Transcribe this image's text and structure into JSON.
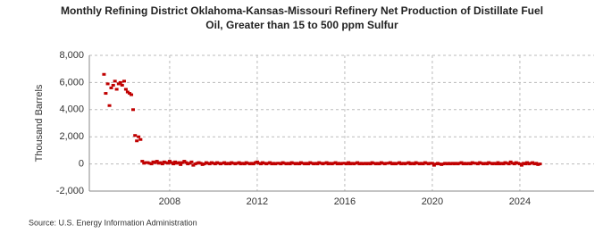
{
  "chart_data": {
    "type": "scatter",
    "title": [
      "Monthly Refining District Oklahoma-Kansas-Missouri Refinery Net Production of Distillate Fuel",
      "Oil, Greater than 15 to 500 ppm Sulfur"
    ],
    "y_label": "Thousand Barrels",
    "source": "Source: U.S. Energy Information Administration",
    "color": "#c00000",
    "grid": true,
    "xlim": [
      2004.33,
      2027.39
    ],
    "xticks": [
      2008,
      2012,
      2016,
      2020,
      2024
    ],
    "ylim": [
      -2000,
      8000
    ],
    "yticks": [
      {
        "value": -2000,
        "label": "-2,000"
      },
      0,
      {
        "value": 2000,
        "label": "2,000"
      },
      {
        "value": 4000,
        "label": "4,000"
      },
      {
        "value": 6000,
        "label": "6,000"
      },
      {
        "value": 8000,
        "label": "8,000"
      }
    ],
    "x": [
      2005,
      2005.08,
      2005.17,
      2005.25,
      2005.33,
      2005.42,
      2005.5,
      2005.58,
      2005.67,
      2005.75,
      2005.83,
      2005.92,
      2006,
      2006.08,
      2006.17,
      2006.25,
      2006.33,
      2006.42,
      2006.5,
      2006.58,
      2006.67,
      2006.75,
      2006.83,
      2006.92,
      2007,
      2007.08,
      2007.17,
      2007.25,
      2007.33,
      2007.42,
      2007.5,
      2007.58,
      2007.67,
      2007.75,
      2007.83,
      2007.92,
      2008,
      2008.08,
      2008.17,
      2008.25,
      2008.33,
      2008.42,
      2008.5,
      2008.58,
      2008.67,
      2008.75,
      2008.83,
      2008.92,
      2009,
      2009.08,
      2009.17,
      2009.25,
      2009.33,
      2009.42,
      2009.5,
      2009.58,
      2009.67,
      2009.75,
      2009.83,
      2009.92,
      2010,
      2010.08,
      2010.17,
      2010.25,
      2010.33,
      2010.42,
      2010.5,
      2010.58,
      2010.67,
      2010.75,
      2010.83,
      2010.92,
      2011,
      2011.08,
      2011.17,
      2011.25,
      2011.33,
      2011.42,
      2011.5,
      2011.58,
      2011.67,
      2011.75,
      2011.83,
      2011.92,
      2012,
      2012.08,
      2012.17,
      2012.25,
      2012.33,
      2012.42,
      2012.5,
      2012.58,
      2012.67,
      2012.75,
      2012.83,
      2012.92,
      2013,
      2013.08,
      2013.17,
      2013.25,
      2013.33,
      2013.42,
      2013.5,
      2013.58,
      2013.67,
      2013.75,
      2013.83,
      2013.92,
      2014,
      2014.08,
      2014.17,
      2014.25,
      2014.33,
      2014.42,
      2014.5,
      2014.58,
      2014.67,
      2014.75,
      2014.83,
      2014.92,
      2015,
      2015.08,
      2015.17,
      2015.25,
      2015.33,
      2015.42,
      2015.5,
      2015.58,
      2015.67,
      2015.75,
      2015.83,
      2015.92,
      2016,
      2016.08,
      2016.17,
      2016.25,
      2016.33,
      2016.42,
      2016.5,
      2016.58,
      2016.67,
      2016.75,
      2016.83,
      2016.92,
      2017,
      2017.08,
      2017.17,
      2017.25,
      2017.33,
      2017.42,
      2017.5,
      2017.58,
      2017.67,
      2017.75,
      2017.83,
      2017.92,
      2018,
      2018.08,
      2018.17,
      2018.25,
      2018.33,
      2018.42,
      2018.5,
      2018.58,
      2018.67,
      2018.75,
      2018.83,
      2018.92,
      2019,
      2019.08,
      2019.17,
      2019.25,
      2019.33,
      2019.42,
      2019.5,
      2019.58,
      2019.67,
      2019.75,
      2019.83,
      2019.92,
      2020,
      2020.08,
      2020.17,
      2020.25,
      2020.33,
      2020.42,
      2020.5,
      2020.58,
      2020.67,
      2020.75,
      2020.83,
      2020.92,
      2021,
      2021.08,
      2021.17,
      2021.25,
      2021.33,
      2021.42,
      2021.5,
      2021.58,
      2021.67,
      2021.75,
      2021.83,
      2021.92,
      2022,
      2022.08,
      2022.17,
      2022.25,
      2022.33,
      2022.42,
      2022.5,
      2022.58,
      2022.67,
      2022.75,
      2022.83,
      2022.92,
      2023,
      2023.08,
      2023.17,
      2023.25,
      2023.33,
      2023.42,
      2023.5,
      2023.58,
      2023.67,
      2023.75,
      2023.83,
      2023.92,
      2024,
      2024.08,
      2024.17,
      2024.25,
      2024.33,
      2024.42,
      2024.5,
      2024.58,
      2024.67,
      2024.75,
      2024.83,
      2024.92
    ],
    "values": [
      6600,
      5200,
      5900,
      4300,
      5600,
      5800,
      6100,
      5500,
      5900,
      6000,
      5800,
      6100,
      5500,
      5300,
      5200,
      5100,
      4000,
      2100,
      1700,
      2000,
      1800,
      200,
      50,
      100,
      100,
      50,
      0,
      150,
      100,
      200,
      50,
      100,
      0,
      150,
      100,
      50,
      200,
      100,
      0,
      150,
      50,
      100,
      -50,
      100,
      200,
      100,
      0,
      50,
      150,
      -100,
      0,
      50,
      100,
      50,
      -50,
      0,
      100,
      50,
      0,
      100,
      50,
      0,
      100,
      50,
      0,
      50,
      100,
      0,
      50,
      0,
      100,
      50,
      0,
      50,
      100,
      0,
      50,
      0,
      100,
      50,
      0,
      50,
      0,
      100,
      150,
      50,
      0,
      100,
      50,
      0,
      50,
      100,
      0,
      50,
      0,
      50,
      50,
      0,
      100,
      50,
      0,
      50,
      0,
      100,
      50,
      0,
      50,
      0,
      100,
      50,
      0,
      50,
      0,
      100,
      50,
      0,
      50,
      0,
      100,
      50,
      0,
      50,
      100,
      0,
      50,
      0,
      50,
      100,
      0,
      50,
      0,
      50,
      50,
      0,
      100,
      0,
      50,
      0,
      50,
      100,
      0,
      50,
      0,
      50,
      0,
      50,
      0,
      100,
      50,
      0,
      50,
      0,
      100,
      50,
      0,
      50,
      50,
      100,
      0,
      50,
      0,
      50,
      100,
      0,
      50,
      0,
      50,
      100,
      0,
      50,
      0,
      100,
      50,
      0,
      50,
      0,
      100,
      50,
      0,
      50,
      50,
      -100,
      0,
      50,
      0,
      -50,
      0,
      50,
      0,
      50,
      0,
      50,
      0,
      50,
      0,
      50,
      100,
      0,
      50,
      0,
      50,
      0,
      100,
      50,
      50,
      0,
      100,
      50,
      0,
      50,
      0,
      100,
      50,
      0,
      50,
      0,
      100,
      0,
      50,
      0,
      100,
      50,
      0,
      150,
      50,
      0,
      100,
      50,
      0,
      -100,
      50,
      0,
      100,
      0,
      50,
      100,
      0,
      50,
      -50,
      0
    ]
  }
}
